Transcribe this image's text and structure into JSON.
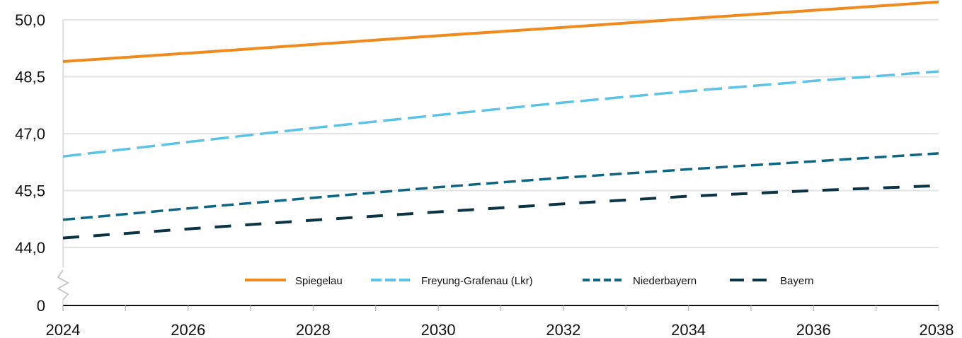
{
  "chart_data": {
    "type": "line",
    "x": [
      2024,
      2026,
      2028,
      2030,
      2032,
      2034,
      2036,
      2038
    ],
    "x_ticks": [
      "2024",
      "2026",
      "2028",
      "2030",
      "2032",
      "2034",
      "2036",
      "2038"
    ],
    "y_ticks": [
      "0",
      "44,0",
      "45,5",
      "47,0",
      "48,5",
      "50,0"
    ],
    "y_tick_values": [
      0,
      44.0,
      45.5,
      47.0,
      48.5,
      50.0
    ],
    "ylim": [
      43.4,
      50.5
    ],
    "y_axis_break": true,
    "grid": "horizontal",
    "legend_position": "bottom-center",
    "series": [
      {
        "name": "Spiegelau",
        "color": "#f08a1c",
        "dash": "solid",
        "values": [
          48.9,
          49.12,
          49.35,
          49.58,
          49.8,
          50.03,
          50.25,
          50.47
        ]
      },
      {
        "name": "Freyung-Grafenau (Lkr)",
        "color": "#5cc3e6",
        "dash": "long",
        "values": [
          46.4,
          46.78,
          47.15,
          47.49,
          47.82,
          48.12,
          48.39,
          48.64
        ]
      },
      {
        "name": "Niederbayern",
        "color": "#0f6683",
        "dash": "medium",
        "values": [
          44.73,
          45.03,
          45.31,
          45.59,
          45.84,
          46.06,
          46.27,
          46.48
        ]
      },
      {
        "name": "Bayern",
        "color": "#0c3444",
        "dash": "long-heavy",
        "values": [
          44.25,
          44.49,
          44.72,
          44.94,
          45.15,
          45.35,
          45.5,
          45.63
        ]
      }
    ]
  }
}
